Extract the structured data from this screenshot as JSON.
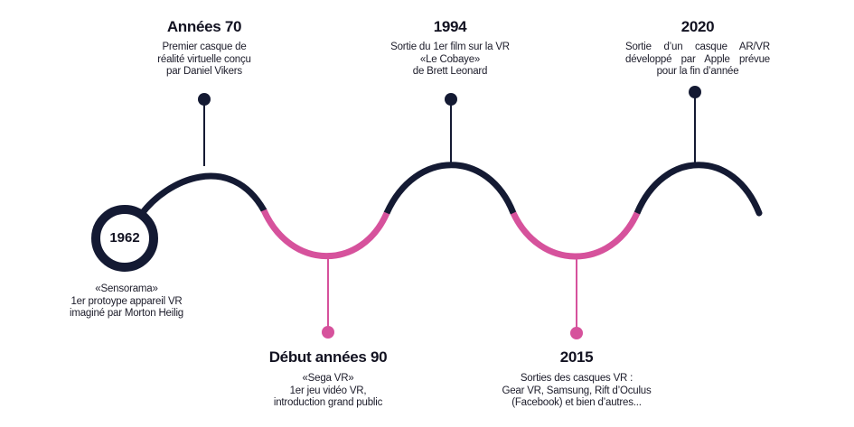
{
  "colors": {
    "navy": "#141a33",
    "pink": "#d6529c",
    "text": "#1c1c2a"
  },
  "origin": {
    "year": "1962",
    "lines": [
      "«Sensorama»",
      "1er protoype appareil VR",
      "imaginé par Morton Heilig"
    ]
  },
  "events_top": [
    {
      "title": "Années 70",
      "lines": [
        "Premier casque de",
        "réalité virtuelle conçu",
        "par Daniel Vikers"
      ]
    },
    {
      "title": "1994",
      "lines": [
        "Sortie du 1er film sur la VR",
        "«Le Cobaye»",
        "de Brett Leonard"
      ]
    },
    {
      "title": "2020",
      "lines": [
        "Sortie d’un casque AR/VR",
        "développé par Apple prévue",
        "pour la fin d’année"
      ]
    }
  ],
  "events_bottom": [
    {
      "title": "Début années 90",
      "lines": [
        "«Sega VR»",
        "1er jeu vidéo VR,",
        "introduction grand public"
      ]
    },
    {
      "title": "2015",
      "lines": [
        "Sorties des casques VR :",
        "Gear VR, Samsung, Rift d’Oculus",
        "(Facebook) et bien d’autres..."
      ]
    }
  ]
}
